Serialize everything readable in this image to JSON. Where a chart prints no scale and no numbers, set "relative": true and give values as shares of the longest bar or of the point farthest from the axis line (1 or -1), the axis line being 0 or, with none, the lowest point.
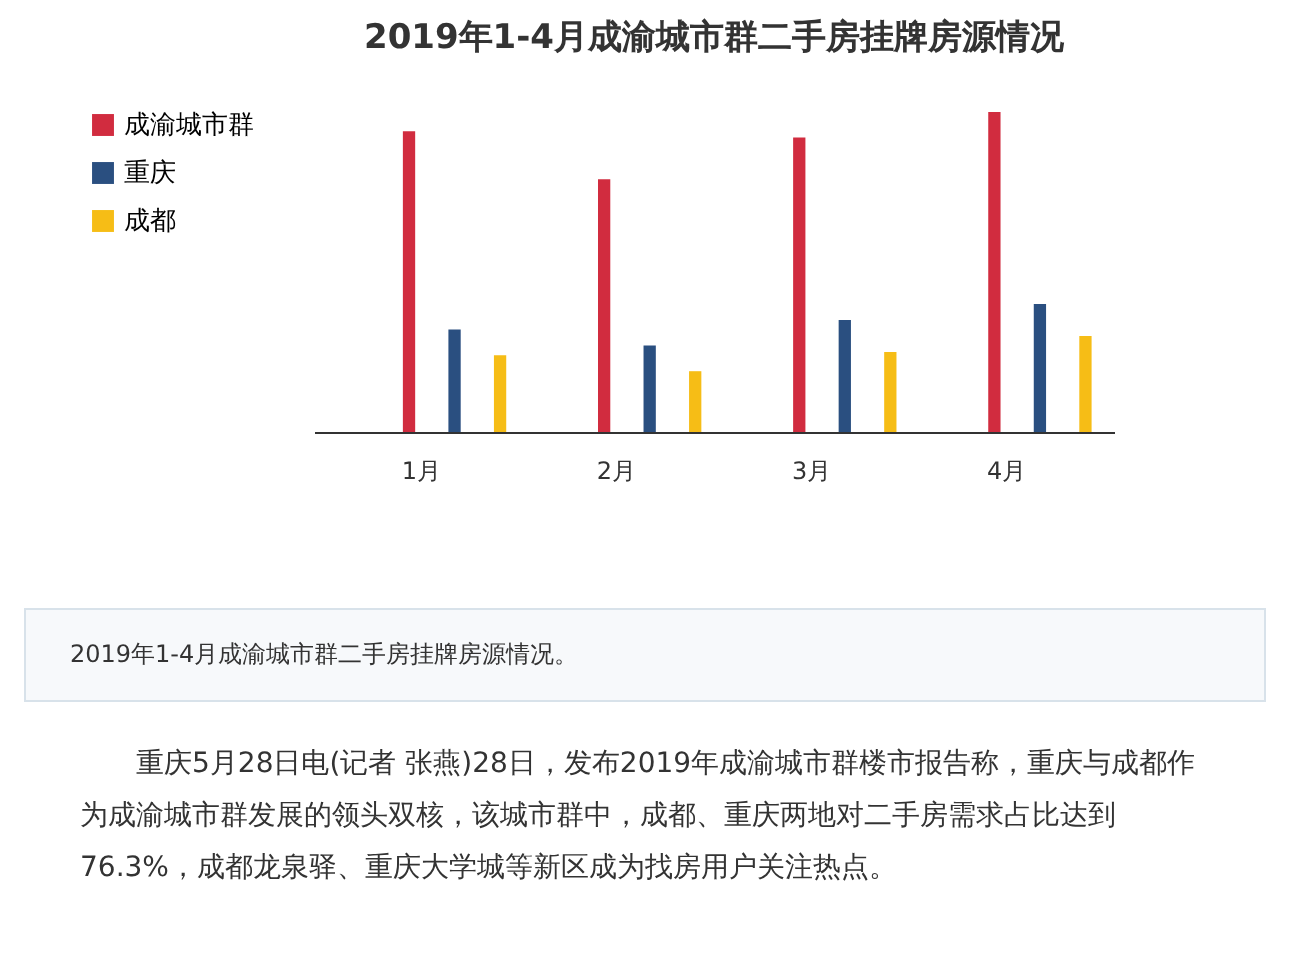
{
  "chart_data": {
    "type": "bar",
    "title": "2019年1-4月成渝城市群二手房挂牌房源情况",
    "categories": [
      "1月",
      "2月",
      "3月",
      "4月"
    ],
    "relative": true,
    "legend": "left",
    "grid": false,
    "series": [
      {
        "name": "成渝城市群",
        "color": "#d12c3f",
        "values": [
          0.94,
          0.79,
          0.92,
          1
        ]
      },
      {
        "name": "重庆",
        "color": "#2a4f80",
        "values": [
          0.32,
          0.27,
          0.35,
          0.4
        ]
      },
      {
        "name": "成都",
        "color": "#f6bd16",
        "values": [
          0.24,
          0.19,
          0.25,
          0.3
        ]
      }
    ],
    "annotations": [
      "2019年1-4月成渝城市群二手房挂牌房源情况。",
      "重庆5月28日电(记者 张燕)28日，发布2019年成渝城市群楼市报告称，重庆与成都作为成渝城市群发展的领头双核，该城市群中，成都、重庆两地对二手房需求占比达到76.3%，成都龙泉驿、重庆大学城等新区成为找房用户关注热点。"
    ]
  }
}
